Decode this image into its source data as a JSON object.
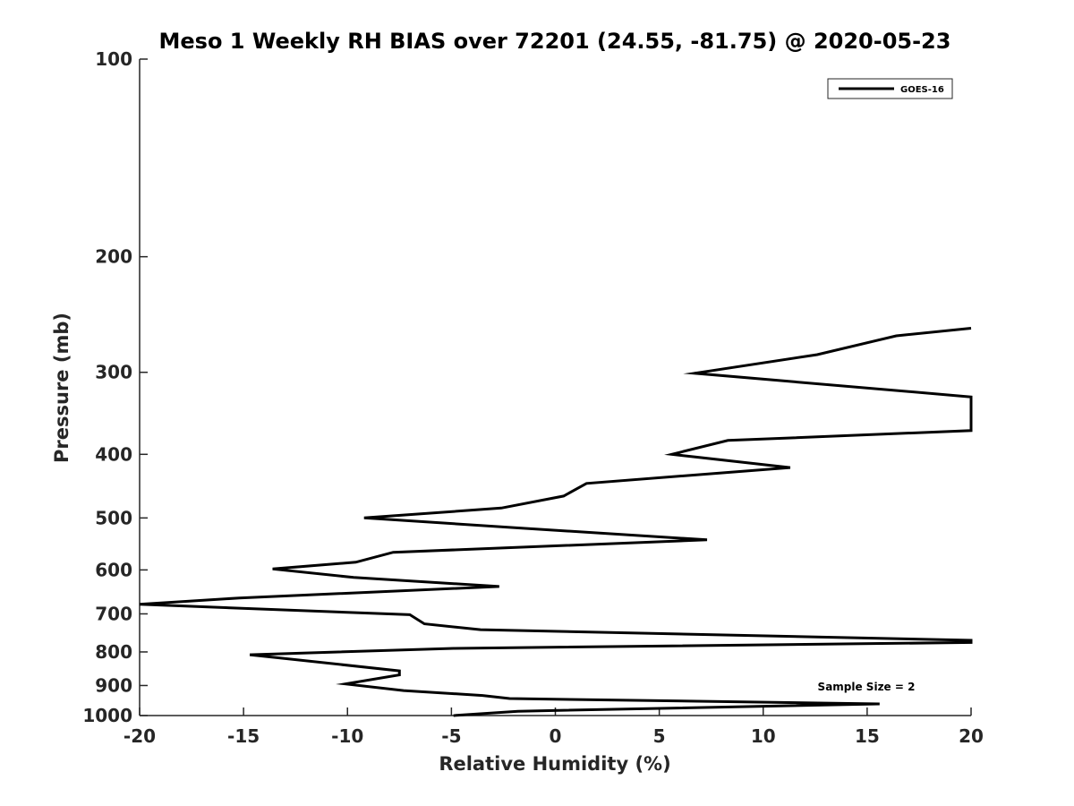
{
  "chart_data": {
    "type": "line",
    "title": "Meso 1 Weekly RH BIAS over 72201 (24.55, -81.75) @ 2020-05-23",
    "xlabel": "Relative Humidity (%)",
    "ylabel": "Pressure (mb)",
    "xlim": [
      -20,
      20
    ],
    "ylim": [
      100,
      1000
    ],
    "yscale": "log",
    "y_reversed": true,
    "xticks": [
      "-20",
      "-15",
      "-10",
      "-5",
      "0",
      "5",
      "10",
      "15",
      "20"
    ],
    "yticks": [
      "100",
      "200",
      "300",
      "400",
      "500",
      "600",
      "700",
      "800",
      "900",
      "1000"
    ],
    "legend": {
      "placement": "top-right",
      "entries": [
        "GOES-16"
      ]
    },
    "annotation": "Sample Size = 2",
    "series": [
      {
        "name": "GOES-16",
        "color": "#000000",
        "points": [
          [
            -4.9,
            1000
          ],
          [
            -1.8,
            985
          ],
          [
            15.6,
            960
          ],
          [
            -2.2,
            942
          ],
          [
            -3.5,
            932
          ],
          [
            -7.3,
            916
          ],
          [
            -10.1,
            895
          ],
          [
            -7.5,
            867
          ],
          [
            -7.5,
            855
          ],
          [
            -14.7,
            808
          ],
          [
            -4.9,
            790
          ],
          [
            20.0,
            774
          ],
          [
            20.0,
            768
          ],
          [
            -3.6,
            740
          ],
          [
            -6.3,
            725
          ],
          [
            -7.0,
            702
          ],
          [
            -20.0,
            677
          ],
          [
            -15.2,
            662
          ],
          [
            -2.7,
            636
          ],
          [
            -9.7,
            616
          ],
          [
            -13.6,
            598
          ],
          [
            -9.6,
            584
          ],
          [
            -7.8,
            564
          ],
          [
            7.3,
            540
          ],
          [
            -1.7,
            518
          ],
          [
            -9.2,
            500
          ],
          [
            -2.6,
            483
          ],
          [
            0.4,
            463
          ],
          [
            1.5,
            443
          ],
          [
            11.3,
            419
          ],
          [
            5.6,
            400
          ],
          [
            8.3,
            381
          ],
          [
            20.0,
            368
          ],
          [
            20.0,
            327
          ],
          [
            6.7,
            301
          ],
          [
            12.6,
            282
          ],
          [
            16.4,
            264
          ],
          [
            20.0,
            257
          ]
        ]
      }
    ]
  }
}
